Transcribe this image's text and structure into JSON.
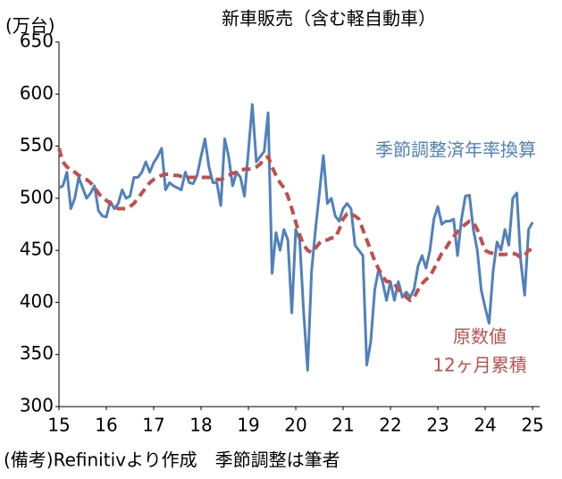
{
  "chart_data": {
    "type": "line",
    "title": "新車販売（含む軽自動車）",
    "y_label": "(万台)",
    "source": "(備考)Refinitivより作成　季節調整は筆者",
    "xlim": [
      15,
      25.15
    ],
    "ylim": [
      300,
      650
    ],
    "xticks": [
      15,
      16,
      17,
      18,
      19,
      20,
      21,
      22,
      23,
      24,
      25
    ],
    "yticks": [
      300,
      350,
      400,
      450,
      500,
      550,
      600,
      650
    ],
    "grid": false,
    "x": [
      15,
      15.083,
      15.167,
      15.25,
      15.333,
      15.417,
      15.5,
      15.583,
      15.667,
      15.75,
      15.833,
      15.917,
      16,
      16.083,
      16.167,
      16.25,
      16.333,
      16.417,
      16.5,
      16.583,
      16.667,
      16.75,
      16.833,
      16.917,
      17,
      17.083,
      17.167,
      17.25,
      17.333,
      17.417,
      17.5,
      17.583,
      17.667,
      17.75,
      17.833,
      17.917,
      18,
      18.083,
      18.167,
      18.25,
      18.333,
      18.417,
      18.5,
      18.583,
      18.667,
      18.75,
      18.833,
      18.917,
      19,
      19.083,
      19.167,
      19.25,
      19.333,
      19.417,
      19.5,
      19.583,
      19.667,
      19.75,
      19.833,
      19.917,
      20,
      20.083,
      20.167,
      20.25,
      20.333,
      20.417,
      20.5,
      20.583,
      20.667,
      20.75,
      20.833,
      20.917,
      21,
      21.083,
      21.167,
      21.25,
      21.333,
      21.417,
      21.5,
      21.583,
      21.667,
      21.75,
      21.833,
      21.917,
      22,
      22.083,
      22.167,
      22.25,
      22.333,
      22.417,
      22.5,
      22.583,
      22.667,
      22.75,
      22.833,
      22.917,
      23,
      23.083,
      23.167,
      23.25,
      23.333,
      23.417,
      23.5,
      23.583,
      23.667,
      23.75,
      23.833,
      23.917,
      24,
      24.083,
      24.167,
      24.25,
      24.333,
      24.417,
      24.5,
      24.583,
      24.667,
      24.75,
      24.833,
      24.917,
      25
    ],
    "series": [
      {
        "name": "季節調整済年率換算",
        "color": "#4f81bd",
        "dashed": false,
        "values": [
          510,
          512,
          525,
          490,
          500,
          520,
          510,
          500,
          505,
          512,
          488,
          483,
          482,
          497,
          490,
          495,
          508,
          500,
          502,
          520,
          520,
          525,
          535,
          525,
          534,
          540,
          548,
          508,
          515,
          512,
          510,
          508,
          525,
          515,
          514,
          522,
          540,
          557,
          530,
          515,
          515,
          493,
          557,
          540,
          512,
          525,
          520,
          502,
          545,
          590,
          535,
          540,
          545,
          582,
          428,
          467,
          450,
          470,
          460,
          390,
          470,
          460,
          390,
          335,
          430,
          470,
          505,
          541,
          495,
          500,
          483,
          478,
          490,
          495,
          490,
          455,
          450,
          445,
          340,
          362,
          412,
          432,
          420,
          402,
          420,
          402,
          420,
          405,
          410,
          405,
          413,
          435,
          445,
          433,
          450,
          480,
          492,
          475,
          478,
          478,
          480,
          445,
          480,
          502,
          503,
          470,
          450,
          412,
          395,
          380,
          430,
          458,
          450,
          470,
          455,
          500,
          505,
          440,
          407,
          470,
          477
        ]
      },
      {
        "name": "原数値",
        "name2": "12ヶ月累積",
        "color": "#c0504d",
        "dashed": true,
        "values": [
          548,
          535,
          530,
          528,
          525,
          522,
          520,
          518,
          515,
          510,
          505,
          500,
          498,
          495,
          492,
          490,
          490,
          490,
          492,
          495,
          500,
          505,
          510,
          515,
          518,
          520,
          522,
          523,
          523,
          522,
          522,
          521,
          520,
          520,
          520,
          520,
          520,
          520,
          520,
          520,
          518,
          518,
          520,
          522,
          524,
          525,
          526,
          528,
          528,
          528,
          530,
          533,
          538,
          540,
          530,
          522,
          515,
          510,
          502,
          490,
          477,
          465,
          455,
          450,
          448,
          452,
          457,
          460,
          460,
          462,
          462,
          470,
          480,
          485,
          485,
          483,
          480,
          470,
          460,
          450,
          440,
          432,
          425,
          420,
          420,
          418,
          412,
          410,
          405,
          402,
          405,
          412,
          418,
          422,
          425,
          432,
          440,
          447,
          452,
          458,
          463,
          468,
          472,
          475,
          478,
          477,
          470,
          460,
          450,
          448,
          447,
          446,
          446,
          446,
          447,
          447,
          446,
          443,
          445,
          450,
          451
        ]
      }
    ]
  }
}
